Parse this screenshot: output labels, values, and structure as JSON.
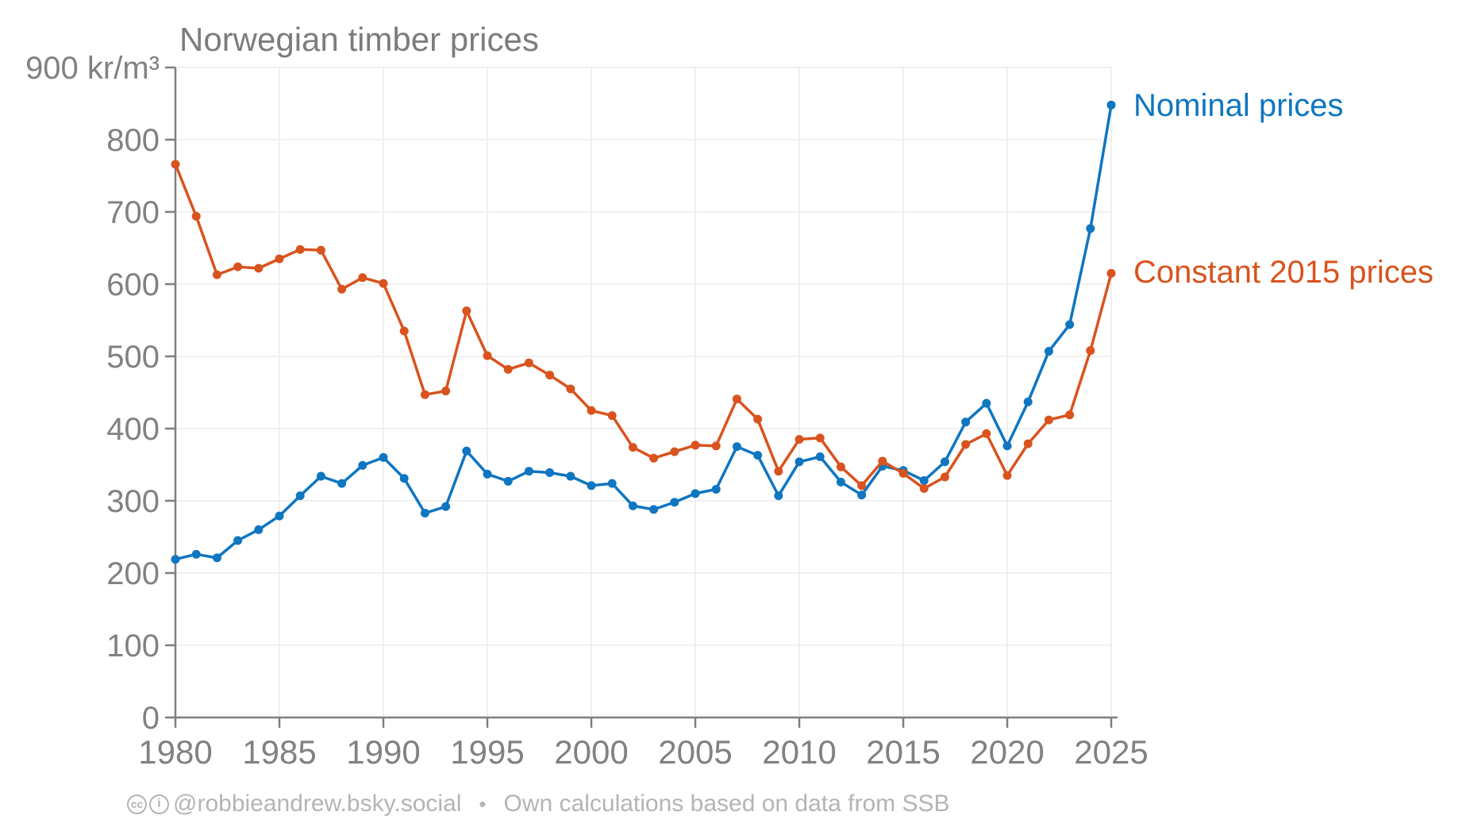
{
  "title": "Norwegian timber prices",
  "colors": {
    "nominal": "#0f76c0",
    "constant": "#d9531e",
    "axis": "#7f7f7f",
    "grid": "#ececec",
    "tick_label": "#818181",
    "footer_text": "#b4b4b4"
  },
  "legend": {
    "nominal_label": "Nominal prices",
    "constant_label": "Constant 2015 prices"
  },
  "footer": {
    "cc_icon_text": "cc",
    "by_icon_text": "i",
    "handle": "@robbieandrew.bsky.social",
    "separator": "•",
    "credit": "Own calculations based on data from SSB"
  },
  "chart_data": {
    "type": "line",
    "title": "Norwegian timber prices",
    "y_top_label": "900 kr/m³",
    "xlim": [
      1980,
      2025
    ],
    "ylim": [
      0,
      900
    ],
    "grid": true,
    "legend_position": "right of line ends",
    "x_ticks": [
      1980,
      1985,
      1990,
      1995,
      2000,
      2005,
      2010,
      2015,
      2020,
      2025
    ],
    "y_ticks": [
      0,
      100,
      200,
      300,
      400,
      500,
      600,
      700,
      800,
      900
    ],
    "x": [
      1980,
      1981,
      1982,
      1983,
      1984,
      1985,
      1986,
      1987,
      1988,
      1989,
      1990,
      1991,
      1992,
      1993,
      1994,
      1995,
      1996,
      1997,
      1998,
      1999,
      2000,
      2001,
      2002,
      2003,
      2004,
      2005,
      2006,
      2007,
      2008,
      2009,
      2010,
      2011,
      2012,
      2013,
      2014,
      2015,
      2016,
      2017,
      2018,
      2019,
      2020,
      2021,
      2022,
      2023,
      2024,
      2025
    ],
    "series": [
      {
        "name": "Nominal prices",
        "color_key": "nominal",
        "values": [
          219,
          226,
          221,
          245,
          260,
          279,
          307,
          334,
          324,
          349,
          360,
          331,
          283,
          292,
          369,
          337,
          327,
          341,
          339,
          334,
          321,
          324,
          293,
          288,
          298,
          310,
          316,
          375,
          363,
          307,
          354,
          361,
          326,
          308,
          348,
          342,
          328,
          354,
          409,
          435,
          376,
          437,
          507,
          544,
          677,
          848
        ]
      },
      {
        "name": "Constant 2015 prices",
        "color_key": "constant",
        "values": [
          766,
          694,
          613,
          624,
          622,
          635,
          648,
          647,
          593,
          609,
          601,
          535,
          447,
          452,
          563,
          501,
          482,
          491,
          474,
          455,
          425,
          418,
          374,
          359,
          368,
          377,
          376,
          441,
          413,
          341,
          385,
          387,
          347,
          321,
          355,
          338,
          317,
          333,
          378,
          393,
          335,
          379,
          412,
          419,
          508,
          615
        ]
      }
    ]
  }
}
